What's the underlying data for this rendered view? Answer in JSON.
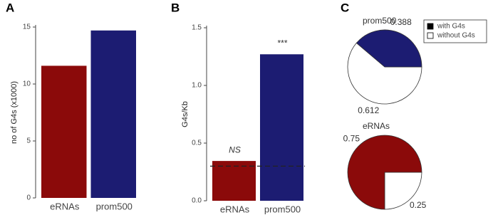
{
  "chart_data": [
    {
      "type": "bar",
      "panel": "A",
      "ylabel": "no of G4s (x1000)",
      "categories": [
        "eRNAs",
        "prom500"
      ],
      "values": [
        11.6,
        14.7
      ],
      "colors": [
        "#8b0a0a",
        "#1c1c72"
      ],
      "ylim": [
        0,
        15
      ],
      "yticks": [
        0,
        5,
        10,
        15
      ]
    },
    {
      "type": "bar",
      "panel": "B",
      "ylabel": "G4s/Kb",
      "categories": [
        "eRNAs",
        "prom500"
      ],
      "values": [
        0.345,
        1.27
      ],
      "colors": [
        "#8b0a0a",
        "#1c1c72"
      ],
      "annotations": [
        "NS",
        "***"
      ],
      "reference": 0.3,
      "ylim": [
        0,
        1.5
      ],
      "yticks": [
        {
          "value": 0,
          "label": "0.0"
        },
        0.5,
        {
          "value": 1,
          "label": "1.0"
        },
        1.5
      ]
    },
    {
      "type": "pie",
      "panel": "C",
      "categories": [
        "with G4s",
        "without G4s"
      ],
      "colors": [
        "#1c1c72",
        "#ffffff"
      ],
      "series": [
        {
          "name": "prom500",
          "values": [
            0.388,
            0.612
          ],
          "colors": [
            "#1c1c72",
            "#ffffff"
          ]
        },
        {
          "name": "eRNAs",
          "values": [
            0.75,
            0.25
          ],
          "colors": [
            "#8b0a0a",
            "#ffffff"
          ]
        }
      ]
    }
  ]
}
